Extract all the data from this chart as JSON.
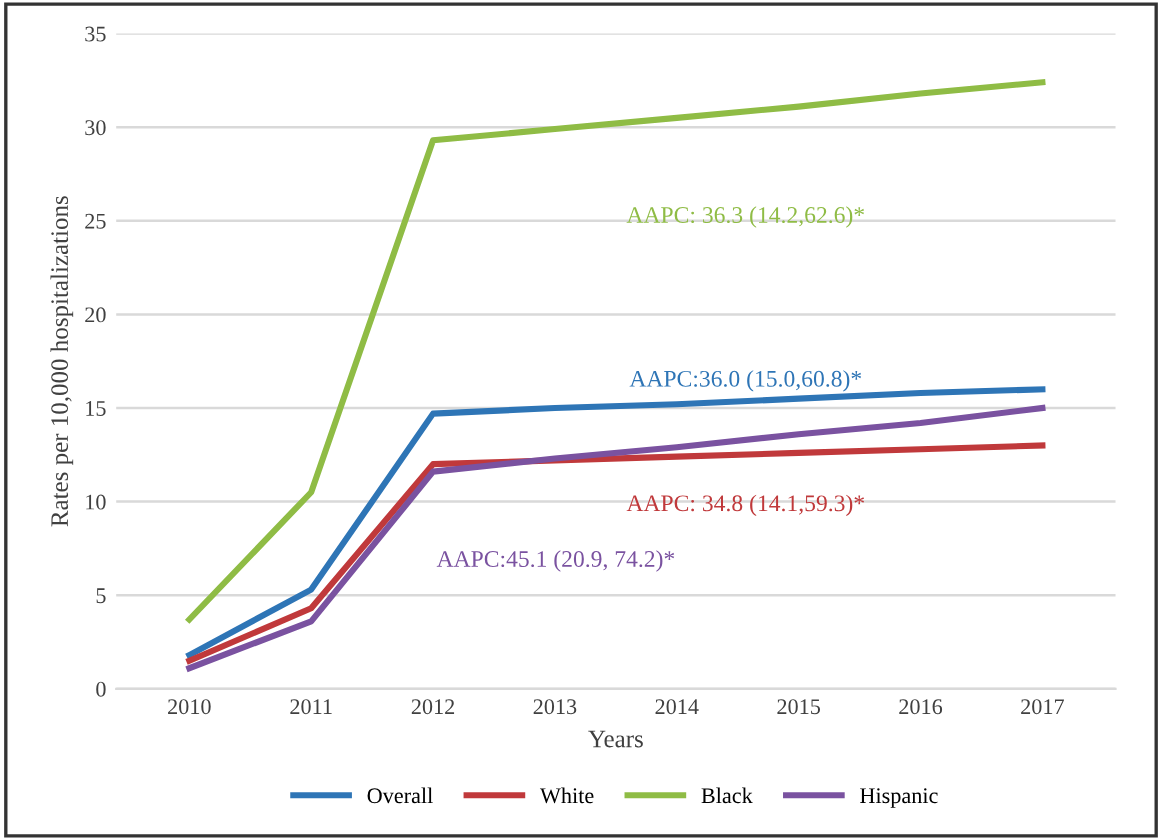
{
  "chart_data": {
    "type": "line",
    "xlabel": "Years",
    "ylabel": "Rates per 10,000 hospitalizations",
    "categories": [
      "2010",
      "2011",
      "2012",
      "2013",
      "2014",
      "2015",
      "2016",
      "2017"
    ],
    "series": [
      {
        "name": "Overall",
        "color": "#2e75b6",
        "values": [
          1.8,
          5.3,
          14.7,
          15.0,
          15.2,
          15.5,
          15.8,
          16.0
        ]
      },
      {
        "name": "White",
        "color": "#c0393b",
        "values": [
          1.5,
          4.3,
          12.0,
          12.2,
          12.4,
          12.6,
          12.8,
          13.0
        ]
      },
      {
        "name": "Black",
        "color": "#8fbc45",
        "values": [
          3.7,
          10.5,
          29.3,
          29.9,
          30.5,
          31.1,
          31.8,
          32.4
        ]
      },
      {
        "name": "Hispanic",
        "color": "#7a52a0",
        "values": [
          1.1,
          3.6,
          11.6,
          12.3,
          12.9,
          13.6,
          14.2,
          15.0
        ]
      }
    ],
    "annotations": [
      "AAPC:36.0 (15.0,60.8)*",
      "AAPC: 34.8 (14.1,59.3)*",
      "AAPC: 36.3 (14.2,62.6)*",
      "AAPC:45.1 (20.9, 74.2)*"
    ],
    "ylim": [
      0,
      35
    ],
    "yticks": [
      0,
      5,
      10,
      15,
      20,
      25,
      30,
      35
    ],
    "grid": "y",
    "legend": "bottom",
    "marker": "none",
    "line_style": "solid"
  }
}
